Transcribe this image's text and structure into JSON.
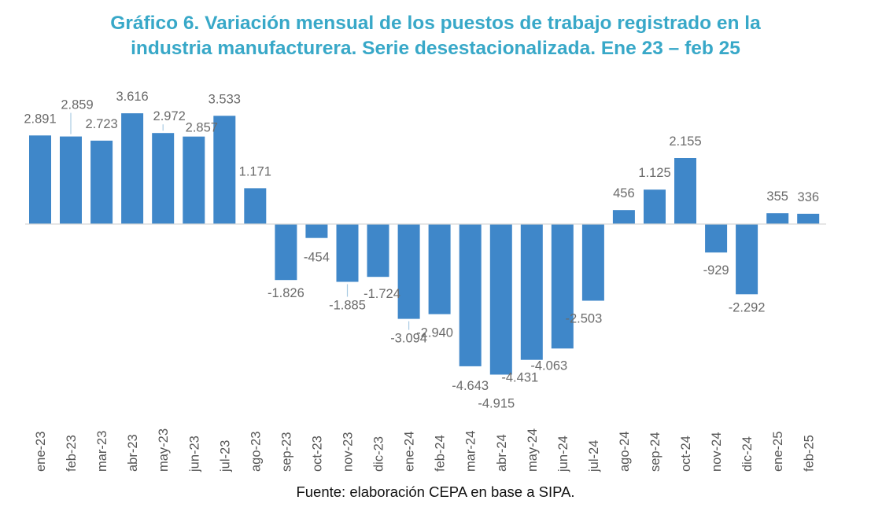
{
  "chart_data": {
    "type": "bar",
    "title_lines": [
      "Gráfico 6. Variación mensual de los puestos de trabajo registrado en la",
      "industria manufacturera. Serie desestacionalizada. Ene 23 – feb 25"
    ],
    "categories": [
      "ene-23",
      "feb-23",
      "mar-23",
      "abr-23",
      "may-23",
      "jun-23",
      "jul-23",
      "ago-23",
      "sep-23",
      "oct-23",
      "nov-23",
      "dic-23",
      "ene-24",
      "feb-24",
      "mar-24",
      "abr-24",
      "may-24",
      "jun-24",
      "jul-24",
      "ago-24",
      "sep-24",
      "oct-24",
      "nov-24",
      "dic-24",
      "ene-25",
      "feb-25"
    ],
    "values": [
      2891,
      2859,
      2723,
      3616,
      2972,
      2857,
      3533,
      1171,
      -1826,
      -454,
      -1885,
      -1724,
      -3094,
      -2940,
      -4643,
      -4915,
      -4431,
      -4063,
      -2503,
      456,
      1125,
      2155,
      -929,
      -2292,
      355,
      336
    ],
    "value_labels": [
      "2.891",
      "2.859",
      "2.723",
      "3.616",
      "2.972",
      "2.857",
      "3.533",
      "1.171",
      "-1.826",
      "-454",
      "-1.885",
      "-1.724",
      "-3.094",
      "-2.940",
      "-4.643",
      "-4.915",
      "-4.431",
      "-4.063",
      "-2.503",
      "456",
      "1.125",
      "2.155",
      "-929",
      "-2.292",
      "355",
      "336"
    ],
    "bar_color": "#3f87c9",
    "title_color": "#38a8c8",
    "grid": false,
    "legend": "none"
  },
  "source_text": "Fuente: elaboración CEPA en base a SIPA."
}
